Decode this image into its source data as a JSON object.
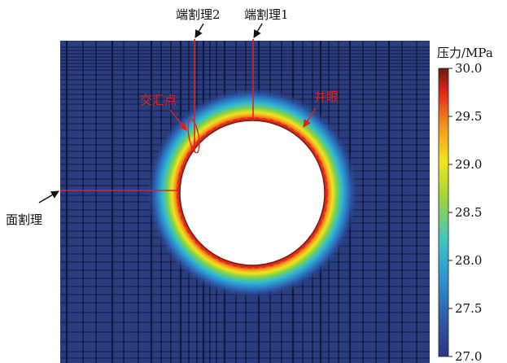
{
  "labels": {
    "face_cleat": "面割理",
    "butt_cleat_1": "端割理1",
    "butt_cleat_2": "端割理2",
    "intersection_point": "交汇点",
    "wellbore": "井眼"
  },
  "colorbar": {
    "title": "压力/MPa",
    "ticks": [
      "30.0",
      "29.5",
      "29.0",
      "28.5",
      "28.0",
      "27.5",
      "27.0"
    ],
    "min": 27.0,
    "max": 30.0,
    "colors": [
      "#2c3583",
      "#2f56a6",
      "#2f8fd0",
      "#3ec6c2",
      "#9fd43a",
      "#f4e41b",
      "#f3941f",
      "#e0231e",
      "#6b1710"
    ]
  },
  "field": {
    "background_color": "#2a3d7e",
    "grid_color": "#0d1537"
  }
}
